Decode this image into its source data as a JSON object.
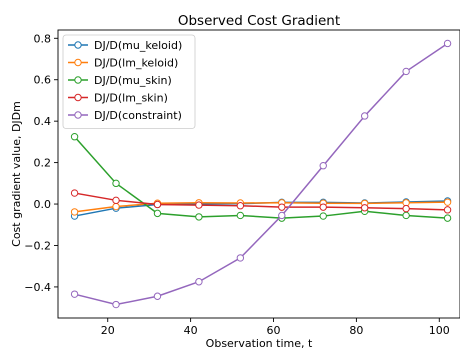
{
  "chart_data": {
    "type": "line",
    "title": "Observed Cost Gradient",
    "xlabel": "Observation time, t",
    "ylabel": "Cost gradient value, DJDm",
    "xlim": [
      8,
      105
    ],
    "ylim": [
      -0.55,
      0.84
    ],
    "x_ticks": [
      20,
      40,
      60,
      80,
      100
    ],
    "y_ticks": [
      -0.4,
      -0.2,
      0.0,
      0.2,
      0.4,
      0.6,
      0.8
    ],
    "x_tick_labels": [
      "20",
      "40",
      "60",
      "80",
      "100"
    ],
    "y_tick_labels": [
      "−0.4",
      "−0.2",
      "0.0",
      "0.2",
      "0.4",
      "0.6",
      "0.8"
    ],
    "grid": false,
    "legend_position": "upper-left",
    "x": [
      12,
      22,
      32,
      42,
      52,
      62,
      72,
      82,
      92,
      102
    ],
    "series": [
      {
        "name": "DJ/D(mu_keloid)",
        "color": "#1f77b4",
        "values": [
          -0.058,
          -0.02,
          -0.002,
          0.0,
          0.002,
          0.008,
          0.008,
          0.005,
          0.01,
          0.015
        ]
      },
      {
        "name": "DJ/D(lm_keloid)",
        "color": "#ff7f0e",
        "values": [
          -0.038,
          -0.012,
          0.004,
          0.006,
          0.005,
          0.006,
          0.004,
          0.003,
          0.006,
          0.009
        ]
      },
      {
        "name": "DJ/D(mu_skin)",
        "color": "#2ca02c",
        "values": [
          0.325,
          0.1,
          -0.045,
          -0.062,
          -0.055,
          -0.068,
          -0.058,
          -0.035,
          -0.055,
          -0.068
        ]
      },
      {
        "name": "DJ/D(lm_skin)",
        "color": "#d62728",
        "values": [
          0.053,
          0.018,
          -0.002,
          -0.005,
          -0.008,
          -0.015,
          -0.015,
          -0.018,
          -0.022,
          -0.028
        ]
      },
      {
        "name": "DJ/D(constraint)",
        "color": "#9467bd",
        "values": [
          -0.435,
          -0.485,
          -0.445,
          -0.375,
          -0.26,
          -0.055,
          0.185,
          0.425,
          0.64,
          0.775
        ]
      }
    ]
  }
}
